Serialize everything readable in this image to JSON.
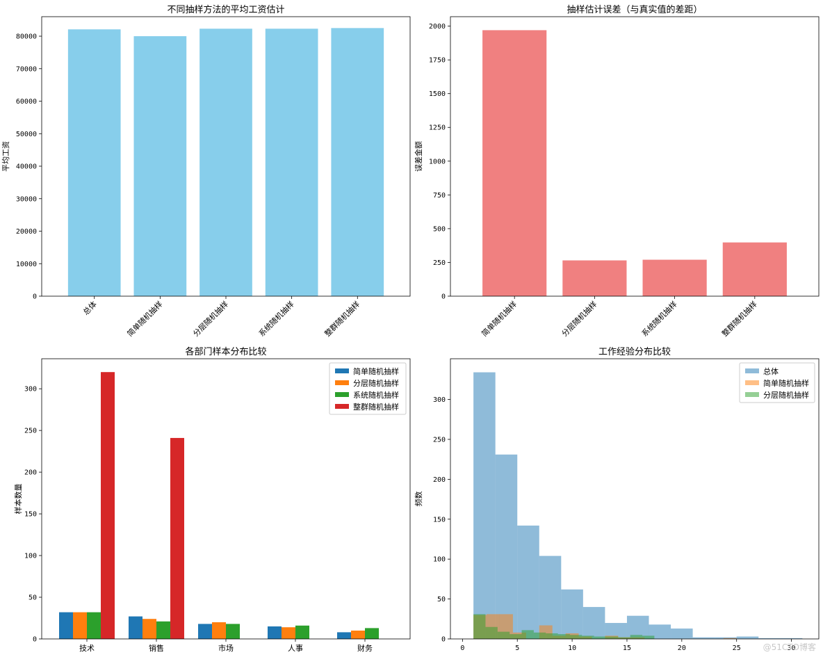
{
  "chart_data": [
    {
      "type": "bar",
      "title": "不同抽样方法的平均工资估计",
      "xlabel": "",
      "ylabel": "平均工资",
      "categories": [
        "总体",
        "简单随机抽样",
        "分层随机抽样",
        "系统随机抽样",
        "整群随机抽样"
      ],
      "values": [
        82100,
        80000,
        82300,
        82300,
        82500
      ],
      "ylim": [
        0,
        86000
      ],
      "yticks": [
        0,
        10000,
        20000,
        30000,
        40000,
        50000,
        60000,
        70000,
        80000
      ],
      "color": "#87CEEB",
      "grid": false
    },
    {
      "type": "bar",
      "title": "抽样估计误差（与真实值的差距）",
      "xlabel": "",
      "ylabel": "误差金额",
      "categories": [
        "简单随机抽样",
        "分层随机抽样",
        "系统随机抽样",
        "整群随机抽样"
      ],
      "values": [
        1970,
        265,
        270,
        398
      ],
      "ylim": [
        0,
        2070
      ],
      "yticks": [
        0,
        250,
        500,
        750,
        1000,
        1250,
        1500,
        1750,
        2000
      ],
      "color": "#F08080",
      "grid": false
    },
    {
      "type": "bar",
      "title": "各部门样本分布比较",
      "xlabel": "",
      "ylabel": "样本数量",
      "categories": [
        "技术",
        "销售",
        "市场",
        "人事",
        "财务"
      ],
      "series": [
        {
          "name": "简单随机抽样",
          "values": [
            32,
            27,
            18,
            15,
            8
          ],
          "color": "#1f77b4"
        },
        {
          "name": "分层随机抽样",
          "values": [
            32,
            24,
            20,
            14,
            10
          ],
          "color": "#ff7f0e"
        },
        {
          "name": "系统随机抽样",
          "values": [
            32,
            21,
            18,
            16,
            13
          ],
          "color": "#2ca02c"
        },
        {
          "name": "整群随机抽样",
          "values": [
            320,
            241,
            0,
            0,
            0
          ],
          "color": "#d62728"
        }
      ],
      "ylim": [
        0,
        336
      ],
      "yticks": [
        0,
        50,
        100,
        150,
        200,
        250,
        300
      ],
      "legend": "top-right",
      "grid": false
    },
    {
      "type": "histogram",
      "title": "工作经验分布比较",
      "xlabel": "",
      "ylabel": "频数",
      "xlim": [
        -1.1,
        32.5
      ],
      "ylim": [
        0,
        351
      ],
      "xticks": [
        0,
        5,
        10,
        15,
        20,
        25,
        30
      ],
      "yticks": [
        0,
        50,
        100,
        150,
        200,
        250,
        300
      ],
      "legend": "top-right",
      "series": [
        {
          "name": "总体",
          "color": "#1f77b4",
          "alpha": 0.5,
          "bins": [
            1,
            3,
            5,
            7,
            9,
            11,
            13,
            15,
            17,
            19,
            21,
            23,
            25,
            27,
            29,
            31
          ],
          "counts": [
            334,
            231,
            142,
            104,
            62,
            40,
            20,
            29,
            18,
            13,
            2,
            2,
            3,
            1,
            1
          ]
        },
        {
          "name": "简单随机抽样",
          "color": "#ff7f0e",
          "alpha": 0.5,
          "bins": [
            1,
            2.2,
            3.4,
            4.6,
            5.8,
            7.0,
            8.2,
            9.4,
            10.6,
            11.8,
            13.0,
            14.2,
            15.4,
            16.6,
            17.8,
            19.0,
            20.2,
            21.4,
            22.6,
            23.8,
            25.0
          ],
          "counts": [
            30,
            31,
            31,
            8,
            0,
            17,
            4,
            7,
            3,
            0,
            4,
            2,
            2,
            0,
            0,
            0,
            0,
            0,
            0,
            1
          ]
        },
        {
          "name": "分层随机抽样",
          "color": "#2ca02c",
          "alpha": 0.5,
          "bins": [
            1,
            2.1,
            3.2,
            4.3,
            5.4,
            6.5,
            7.6,
            8.7,
            9.8,
            10.9,
            12.0,
            13.1,
            14.2,
            15.3,
            16.4,
            17.5
          ],
          "counts": [
            31,
            15,
            9,
            6,
            11,
            8,
            7,
            6,
            5,
            4,
            3,
            3,
            2,
            5,
            4
          ]
        }
      ]
    }
  ],
  "watermark": "@51CTO博客"
}
